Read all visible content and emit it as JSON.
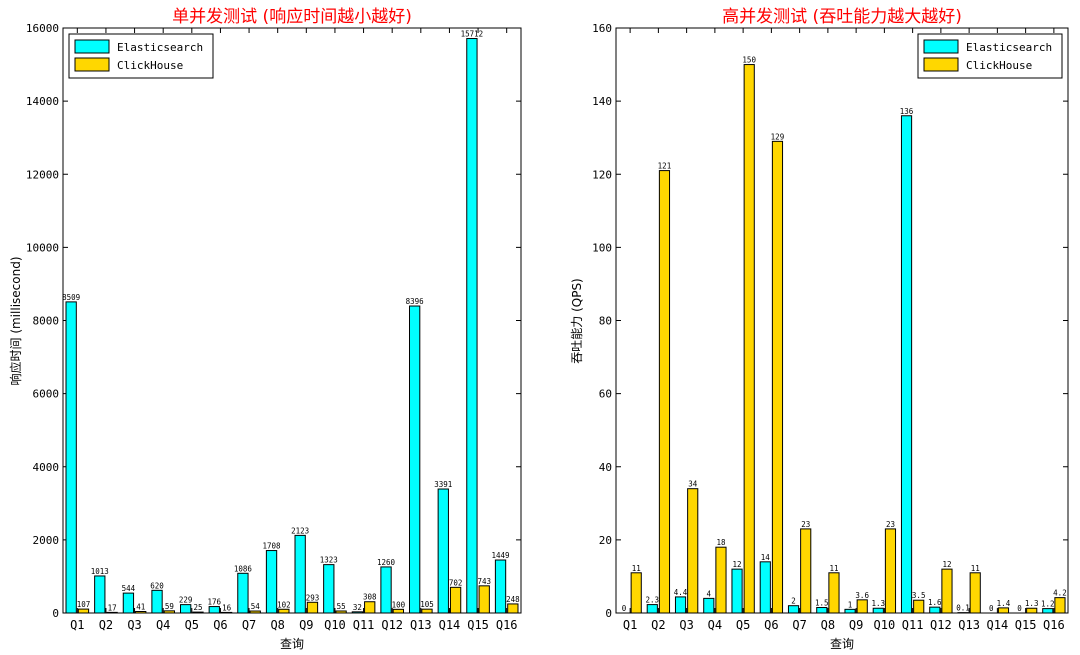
{
  "colors": {
    "elasticsearch": "#00ffff",
    "clickhouse": "#ffd700",
    "title": "#ff0000"
  },
  "chart_data": [
    {
      "type": "bar",
      "title": "单并发测试 (响应时间越小越好)",
      "xlabel": "查询",
      "ylabel": "响应时间 (millisecond)",
      "ylim": [
        0,
        16000
      ],
      "yticks": [
        0,
        2000,
        4000,
        6000,
        8000,
        10000,
        12000,
        14000,
        16000
      ],
      "legend_position": "top-left",
      "grid": false,
      "categories": [
        "Q1",
        "Q2",
        "Q3",
        "Q4",
        "Q5",
        "Q6",
        "Q7",
        "Q8",
        "Q9",
        "Q10",
        "Q11",
        "Q12",
        "Q13",
        "Q14",
        "Q15",
        "Q16"
      ],
      "series": [
        {
          "name": "Elasticsearch",
          "values": [
            8509,
            1013,
            544,
            620,
            229,
            176,
            1086,
            1708,
            2123,
            1323,
            32,
            1260,
            8396,
            3391,
            15712,
            1449
          ],
          "labels": [
            "8509",
            "1013",
            "544",
            "620",
            "229",
            "176",
            "1086",
            "1708",
            "2123",
            "1323",
            "32",
            "1260",
            "8396",
            "3391",
            "15712",
            "1449"
          ]
        },
        {
          "name": "ClickHouse",
          "values": [
            107,
            17,
            41,
            59,
            25,
            16,
            54,
            102,
            293,
            55,
            308,
            100,
            105,
            702,
            743,
            248
          ],
          "labels": [
            "107",
            "17",
            "41",
            "59",
            "25",
            "16",
            "54",
            "102",
            "293",
            "55",
            "308",
            "100",
            "105",
            "702",
            "743",
            "248"
          ]
        }
      ]
    },
    {
      "type": "bar",
      "title": "高并发测试 (吞吐能力越大越好)",
      "xlabel": "查询",
      "ylabel": "吞吐能力 (QPS)",
      "ylim": [
        0,
        160
      ],
      "yticks": [
        0,
        20,
        40,
        60,
        80,
        100,
        120,
        140,
        160
      ],
      "legend_position": "top-right",
      "grid": false,
      "categories": [
        "Q1",
        "Q2",
        "Q3",
        "Q4",
        "Q5",
        "Q6",
        "Q7",
        "Q8",
        "Q9",
        "Q10",
        "Q11",
        "Q12",
        "Q13",
        "Q14",
        "Q15",
        "Q16"
      ],
      "series": [
        {
          "name": "Elasticsearch",
          "values": [
            0,
            2.3,
            4.4,
            4,
            12,
            14,
            2,
            1.5,
            1,
            1.3,
            136,
            1.6,
            0.1,
            0,
            0,
            1.2
          ],
          "labels": [
            "0",
            "2.3",
            "4.4",
            "4",
            "12",
            "14",
            "2",
            "1.5",
            "1",
            "1.3",
            "136",
            "1.6",
            "0.1",
            "0",
            "0",
            "1.2"
          ]
        },
        {
          "name": "ClickHouse",
          "values": [
            11,
            121,
            34,
            18,
            150,
            129,
            23,
            11,
            3.6,
            23,
            3.5,
            12,
            11,
            1.4,
            1.3,
            4.2
          ],
          "labels": [
            "11",
            "121",
            "34",
            "18",
            "150",
            "129",
            "23",
            "11",
            "3.6",
            "23",
            "3.5",
            "12",
            "11",
            "1.4",
            "1.3",
            "4.2"
          ]
        }
      ]
    }
  ]
}
